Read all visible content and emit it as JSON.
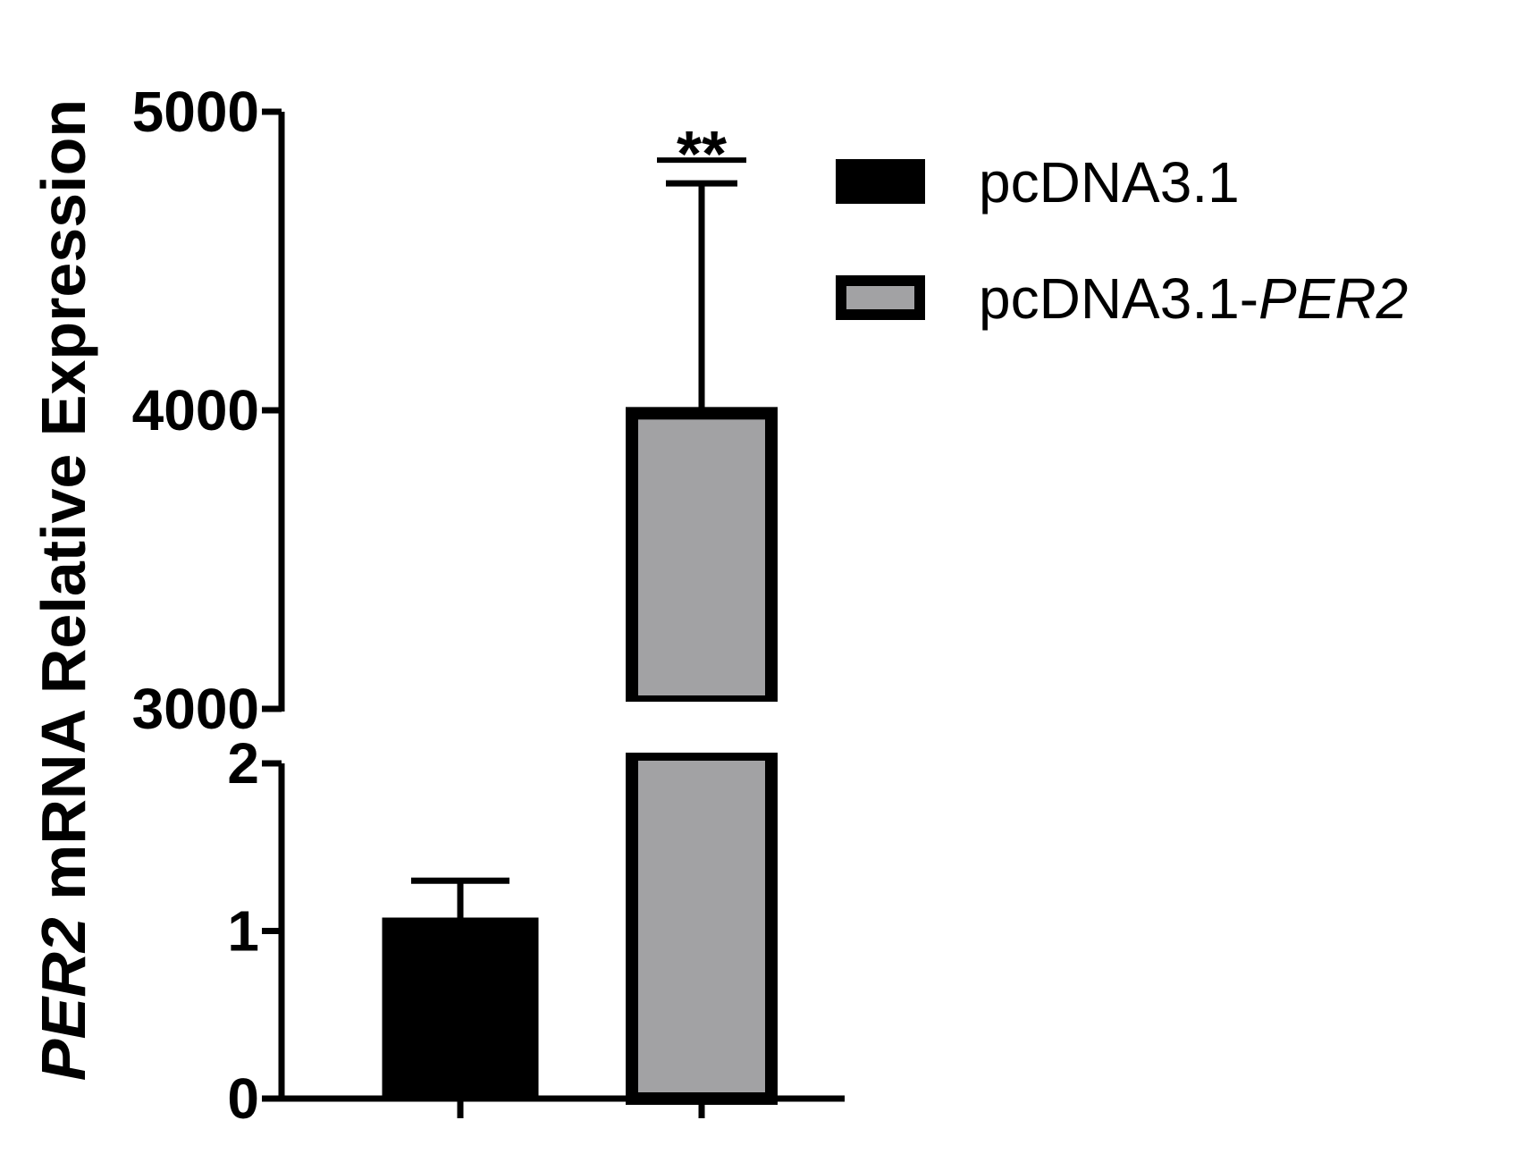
{
  "chart_data": {
    "type": "bar",
    "ylabel": {
      "gene": "PER2",
      "rest": " mRNA Relative Expression"
    },
    "axis_segments": {
      "lower": {
        "ylim": [
          0,
          2
        ],
        "ticks": [
          "0",
          "1",
          "2"
        ]
      },
      "upper": {
        "ylim": [
          3000,
          5000
        ],
        "ticks": [
          "3000",
          "4000",
          "5000"
        ]
      }
    },
    "series": [
      {
        "name": "pcDNA3.1",
        "value": 1.08,
        "error": 0.22,
        "color": "#000000",
        "legend": {
          "text": "pcDNA3.1",
          "italic": ""
        }
      },
      {
        "name": "pcDNA3.1-PER2",
        "value": 3990,
        "error": 770,
        "color": "#a2a2a4",
        "legend": {
          "text": "pcDNA3.1-",
          "italic": "PER2"
        }
      }
    ],
    "annotations": [
      {
        "text": "**",
        "series": "pcDNA3.1-PER2"
      }
    ],
    "legend_position": "top-right",
    "grid": false
  }
}
